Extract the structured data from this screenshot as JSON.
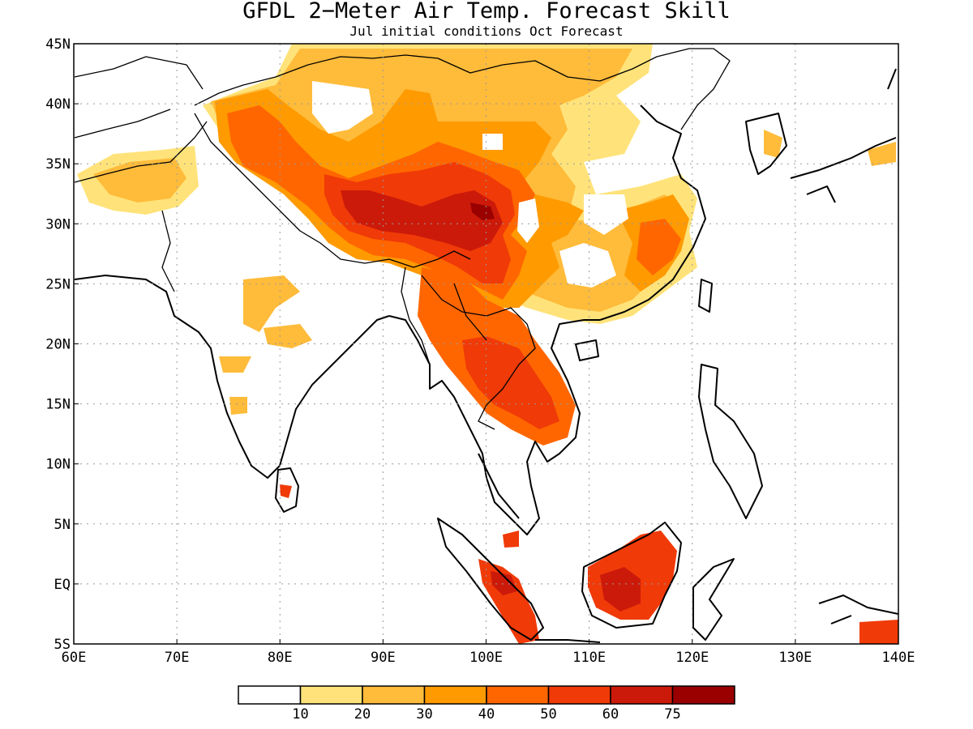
{
  "title": "GFDL 2−Meter Air Temp. Forecast Skill",
  "subtitle": "Jul initial conditions  Oct Forecast",
  "axes": {
    "x_ticks": [
      "60E",
      "70E",
      "80E",
      "90E",
      "100E",
      "110E",
      "120E",
      "130E",
      "140E"
    ],
    "y_ticks": [
      "45N",
      "40N",
      "35N",
      "30N",
      "25N",
      "20N",
      "15N",
      "10N",
      "5N",
      "EQ",
      "5S"
    ],
    "lon_range": [
      60,
      140
    ],
    "lat_range": [
      -5,
      45
    ],
    "grid": true
  },
  "legend": {
    "labels": [
      "10",
      "20",
      "30",
      "40",
      "50",
      "60",
      "75"
    ],
    "colors": [
      "#ffffff",
      "#ffe37a",
      "#ffbb3a",
      "#ff9a00",
      "#ff6600",
      "#f03a08",
      "#cc1a0a",
      "#9a0000"
    ],
    "placement": "bottom-center"
  },
  "field": {
    "variable": "2-meter air temperature forecast skill",
    "units": "",
    "regions": [
      {
        "name": "Tibetan Plateau / SW China",
        "skill": "50-75"
      },
      {
        "name": "Indochina",
        "skill": "50-60"
      },
      {
        "name": "Borneo",
        "skill": "50-60"
      },
      {
        "name": "Sumatra",
        "skill": "50-60"
      },
      {
        "name": "New Guinea",
        "skill": "50-60"
      },
      {
        "name": "Central Asia / Mongolia",
        "skill": "20-40"
      },
      {
        "name": "SE China",
        "skill": "30-50"
      },
      {
        "name": "Central India",
        "skill": "10-30"
      },
      {
        "name": "Sri Lanka",
        "skill": "50-60"
      }
    ]
  }
}
